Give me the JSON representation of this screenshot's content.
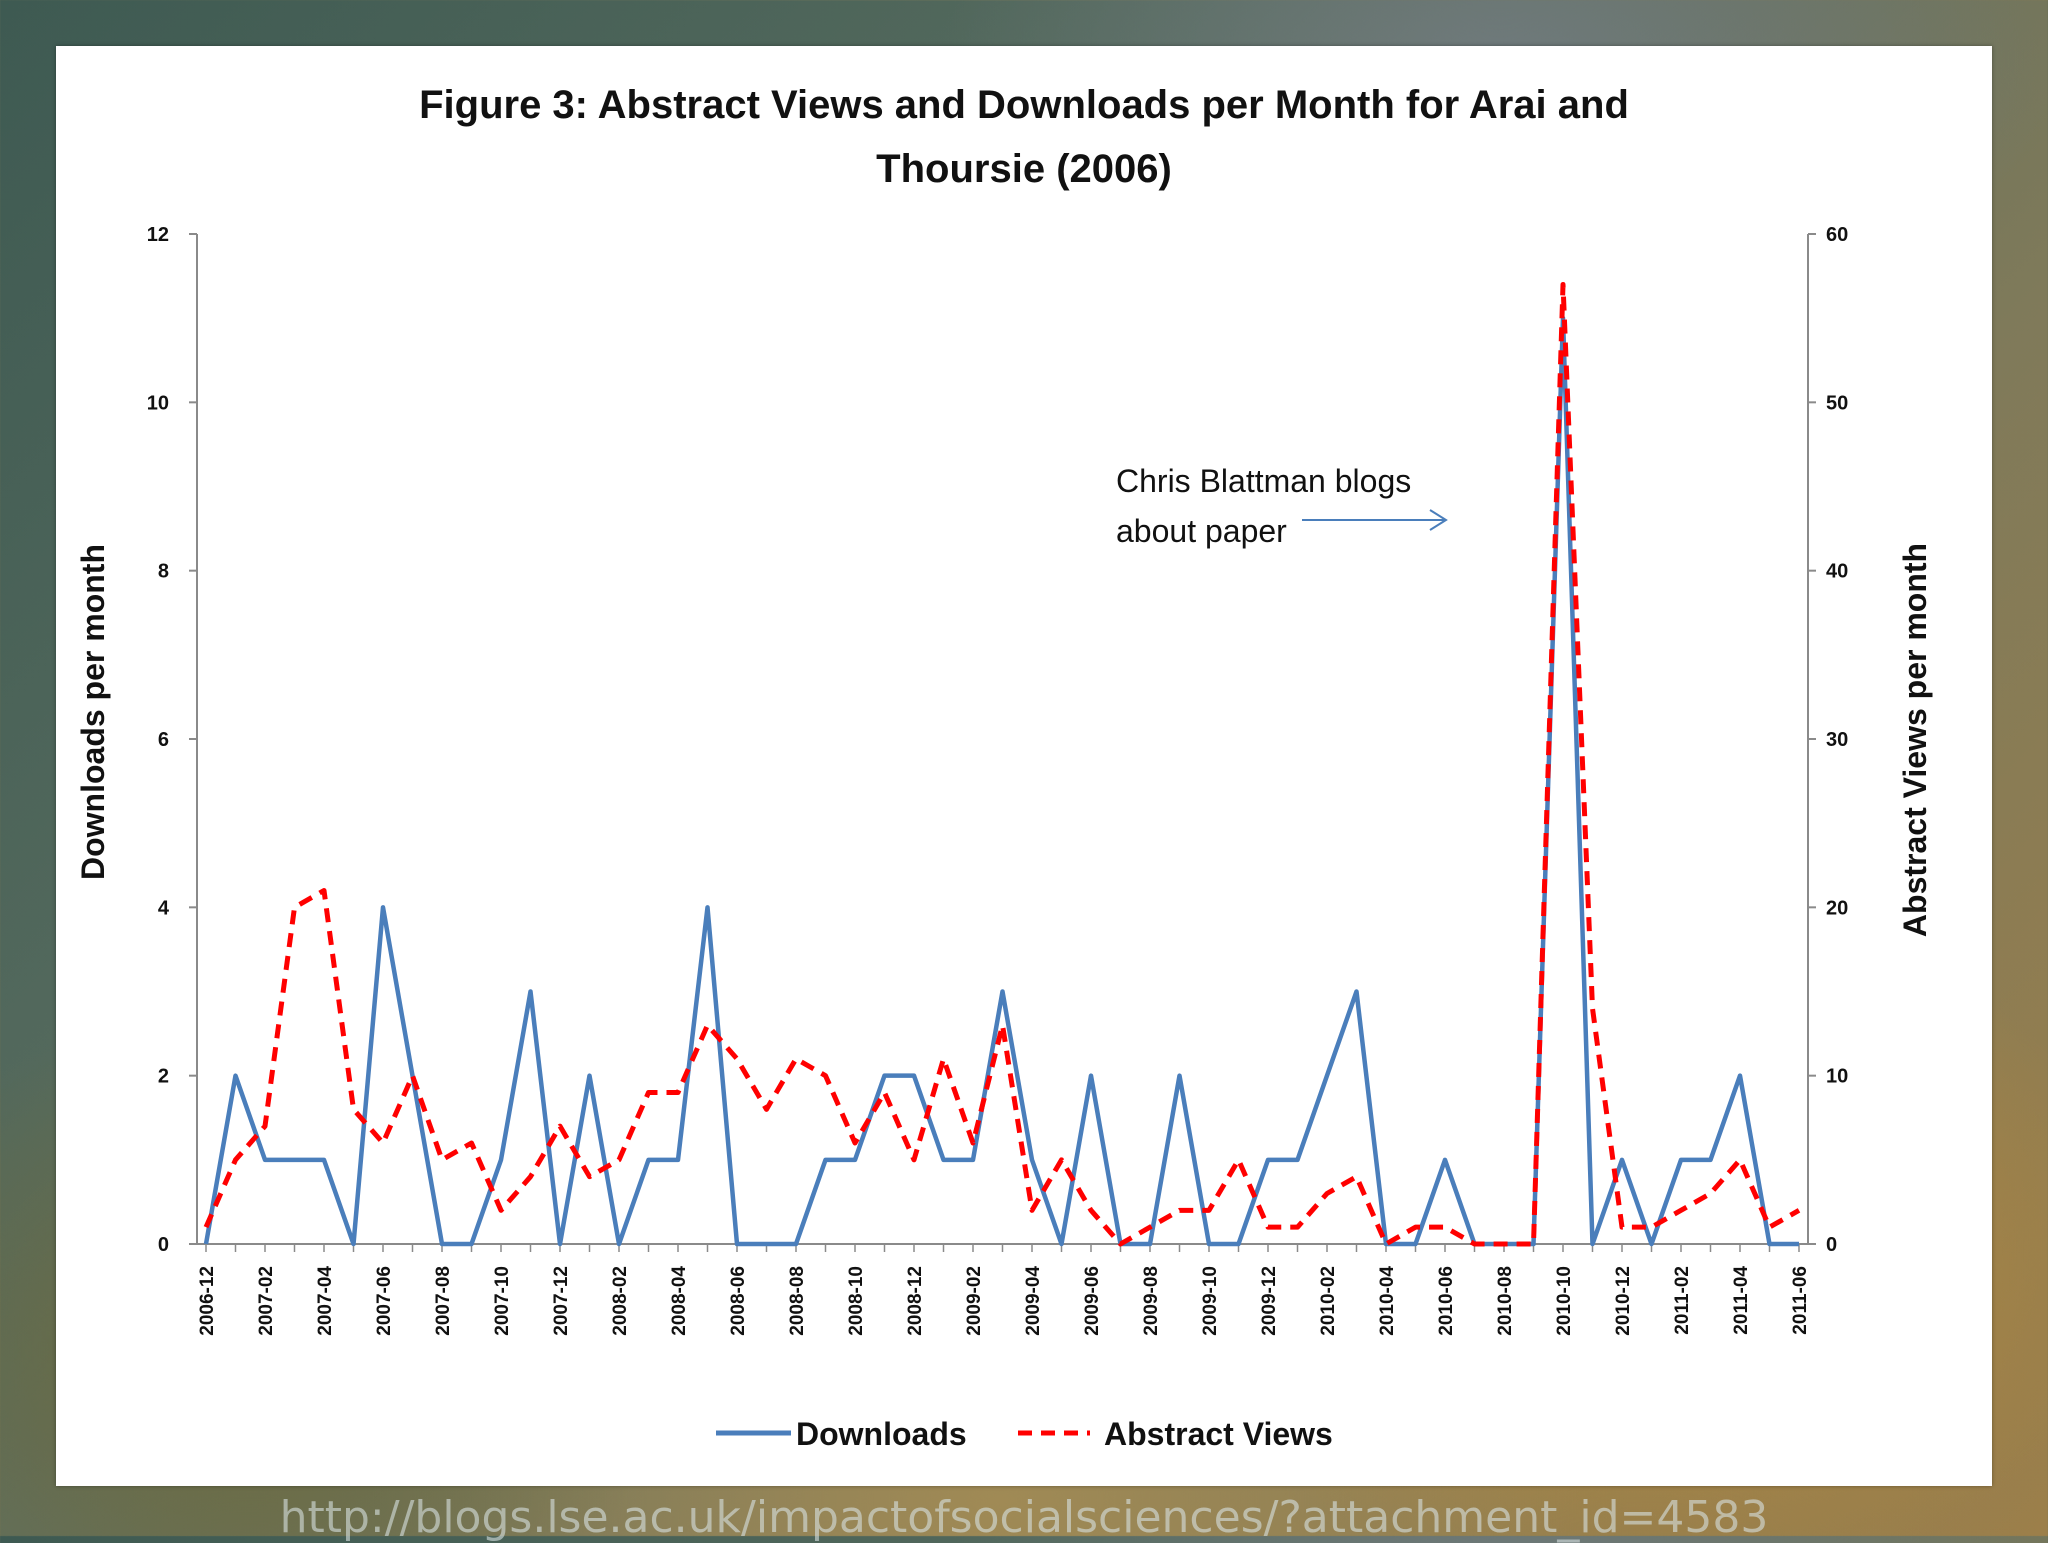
{
  "chart_data": {
    "type": "line",
    "title_line1": "Figure 3: Abstract Views and Downloads per Month for Arai and",
    "title_line2": "Thoursie (2006)",
    "ylabel_left": "Downloads per month",
    "ylabel_right": "Abstract Views per month",
    "ylim_left": [
      0,
      12
    ],
    "ylim_right": [
      0,
      60
    ],
    "yticks_left": [
      "0",
      "2",
      "4",
      "6",
      "8",
      "10",
      "12"
    ],
    "yticks_right": [
      "0",
      "10",
      "20",
      "30",
      "40",
      "50",
      "60"
    ],
    "x": [
      "2006-12",
      "2007-01",
      "2007-02",
      "2007-03",
      "2007-04",
      "2007-05",
      "2007-06",
      "2007-07",
      "2007-08",
      "2007-09",
      "2007-10",
      "2007-11",
      "2007-12",
      "2008-01",
      "2008-02",
      "2008-03",
      "2008-04",
      "2008-05",
      "2008-06",
      "2008-07",
      "2008-08",
      "2008-09",
      "2008-10",
      "2008-11",
      "2008-12",
      "2009-01",
      "2009-02",
      "2009-03",
      "2009-04",
      "2009-05",
      "2009-06",
      "2009-07",
      "2009-08",
      "2009-09",
      "2009-10",
      "2009-11",
      "2009-12",
      "2010-01",
      "2010-02",
      "2010-03",
      "2010-04",
      "2010-05",
      "2010-06",
      "2010-07",
      "2010-08",
      "2010-09",
      "2010-10",
      "2010-11",
      "2010-12",
      "2011-01",
      "2011-02",
      "2011-03",
      "2011-04",
      "2011-05",
      "2011-06"
    ],
    "xtick_labels": [
      "2006-12",
      "2007-02",
      "2007-04",
      "2007-06",
      "2007-08",
      "2007-10",
      "2007-12",
      "2008-02",
      "2008-04",
      "2008-06",
      "2008-08",
      "2008-10",
      "2008-12",
      "2009-02",
      "2009-04",
      "2009-06",
      "2009-08",
      "2009-10",
      "2009-12",
      "2010-02",
      "2010-04",
      "2010-06",
      "2010-08",
      "2010-10",
      "2010-12",
      "2011-02",
      "2011-04",
      "2011-06"
    ],
    "series": [
      {
        "name": "Downloads",
        "axis": "left",
        "color": "#4a7ebb",
        "style": "solid",
        "values": [
          0,
          2,
          1,
          1,
          1,
          0,
          4,
          2,
          0,
          0,
          1,
          3,
          0,
          2,
          0,
          1,
          1,
          4,
          0,
          0,
          0,
          1,
          1,
          2,
          2,
          1,
          1,
          3,
          1,
          0,
          2,
          0,
          0,
          2,
          0,
          0,
          1,
          1,
          2,
          3,
          0,
          0,
          1,
          0,
          0,
          0,
          11,
          0,
          1,
          0,
          1,
          1,
          2,
          0,
          0
        ]
      },
      {
        "name": "Abstract Views",
        "axis": "right",
        "color": "#ff0000",
        "style": "dashed",
        "values": [
          1,
          5,
          7,
          20,
          21,
          8,
          6,
          10,
          5,
          6,
          2,
          4,
          7,
          4,
          5,
          9,
          9,
          13,
          11,
          8,
          11,
          10,
          6,
          9,
          5,
          11,
          6,
          13,
          2,
          5,
          2,
          0,
          1,
          2,
          2,
          5,
          1,
          1,
          3,
          4,
          0,
          1,
          1,
          0,
          0,
          0,
          57,
          14,
          1,
          1,
          2,
          3,
          5,
          1,
          2
        ]
      }
    ],
    "annotation_line1": "Chris Blattman blogs",
    "annotation_line2": "about paper",
    "annotation_target_x": "2010-10",
    "grid": false,
    "legend_position": "bottom"
  },
  "caption": "http://blogs.lse.ac.uk/impactofsocialsciences/?attachment_id=4583"
}
